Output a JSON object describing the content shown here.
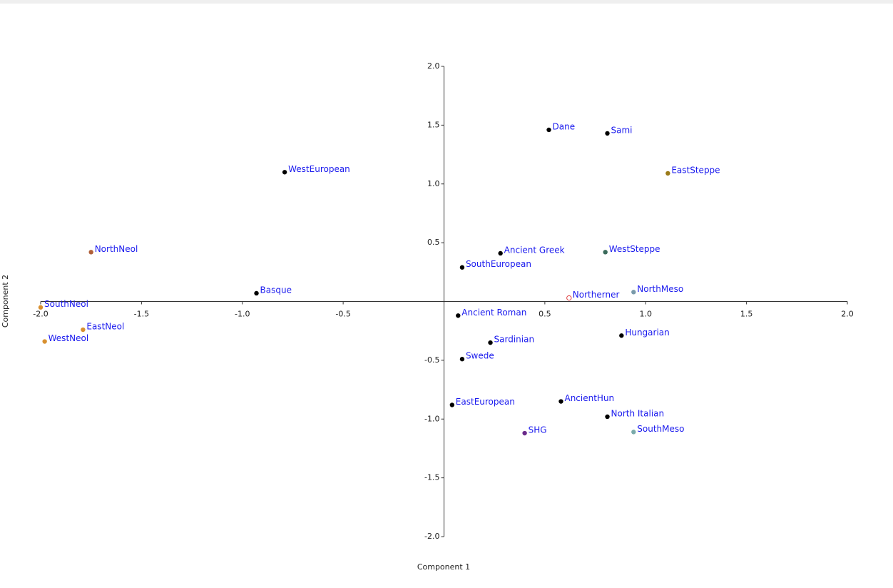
{
  "chart_data": {
    "type": "scatter",
    "xlabel": "Component 1",
    "ylabel": "Component 2",
    "xlim": [
      -2,
      2
    ],
    "ylim": [
      -2,
      2
    ],
    "xticks": [
      {
        "value": -2,
        "label": "-2.0"
      },
      -1.5,
      {
        "value": -1,
        "label": "-1.0"
      },
      -0.5,
      0.5,
      {
        "value": 1,
        "label": "1.0"
      },
      1.5,
      {
        "value": 2,
        "label": "2.0"
      }
    ],
    "yticks": [
      {
        "value": 2,
        "label": "2.0"
      },
      1.5,
      {
        "value": 1,
        "label": "1.0"
      },
      0.5,
      -0.5,
      {
        "value": -1,
        "label": "-1.0"
      },
      -1.5,
      {
        "value": -2,
        "label": "-2.0"
      }
    ],
    "label_color": "#1a1aee",
    "points": [
      {
        "label": "Dane",
        "x": 0.52,
        "y": 1.46,
        "color": "#000000"
      },
      {
        "label": "Sami",
        "x": 0.81,
        "y": 1.43,
        "color": "#000000"
      },
      {
        "label": "WestEuropean",
        "x": -0.79,
        "y": 1.1,
        "color": "#000000"
      },
      {
        "label": "EastSteppe",
        "x": 1.11,
        "y": 1.09,
        "color": "#9a7a18"
      },
      {
        "label": "NorthNeol",
        "x": -1.75,
        "y": 0.42,
        "color": "#b0603a"
      },
      {
        "label": "Ancient Greek",
        "x": 0.28,
        "y": 0.41,
        "color": "#000000"
      },
      {
        "label": "WestSteppe",
        "x": 0.8,
        "y": 0.42,
        "color": "#3a6a5a"
      },
      {
        "label": "SouthEuropean",
        "x": 0.09,
        "y": 0.29,
        "color": "#000000"
      },
      {
        "label": "Basque",
        "x": -0.93,
        "y": 0.07,
        "color": "#000000"
      },
      {
        "label": "Northerner",
        "x": 0.62,
        "y": 0.03,
        "color": "#e04040",
        "marker": "hollow"
      },
      {
        "label": "NorthMeso",
        "x": 0.94,
        "y": 0.08,
        "color": "#7a9aaa"
      },
      {
        "label": "SouthNeol",
        "x": -2.0,
        "y": -0.05,
        "color": "#d89030"
      },
      {
        "label": "Ancient Roman",
        "x": 0.07,
        "y": -0.12,
        "color": "#000000"
      },
      {
        "label": "EastNeol",
        "x": -1.79,
        "y": -0.24,
        "color": "#d89030"
      },
      {
        "label": "WestNeol",
        "x": -1.98,
        "y": -0.34,
        "color": "#d89030"
      },
      {
        "label": "Hungarian",
        "x": 0.88,
        "y": -0.29,
        "color": "#000000"
      },
      {
        "label": "Sardinian",
        "x": 0.23,
        "y": -0.35,
        "color": "#000000"
      },
      {
        "label": "Swede",
        "x": 0.09,
        "y": -0.49,
        "color": "#000000"
      },
      {
        "label": "EastEuropean",
        "x": 0.04,
        "y": -0.88,
        "color": "#000000"
      },
      {
        "label": "AncientHun",
        "x": 0.58,
        "y": -0.85,
        "color": "#000000"
      },
      {
        "label": "North Italian",
        "x": 0.81,
        "y": -0.98,
        "color": "#000000"
      },
      {
        "label": "SHG",
        "x": 0.4,
        "y": -1.12,
        "color": "#6a2a8a"
      },
      {
        "label": "SouthMeso",
        "x": 0.94,
        "y": -1.11,
        "color": "#7aaaaa"
      }
    ]
  }
}
